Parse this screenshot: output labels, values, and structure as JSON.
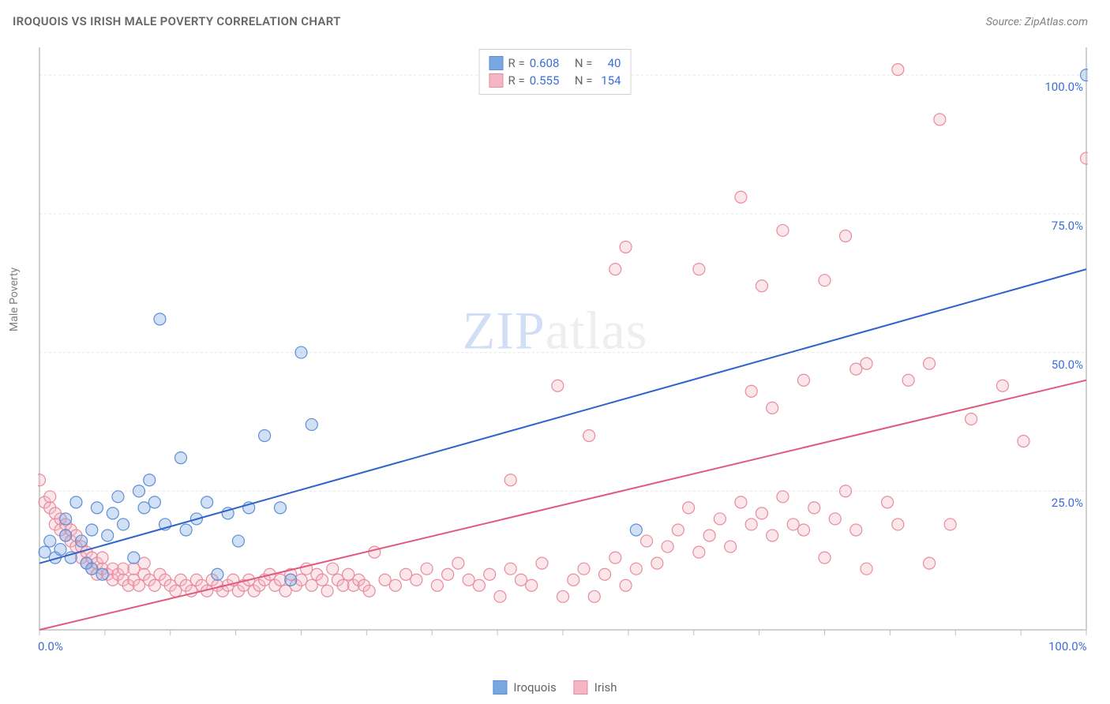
{
  "title": "IROQUOIS VS IRISH MALE POVERTY CORRELATION CHART",
  "source_prefix": "Source: ",
  "source_link": "ZipAtlas.com",
  "y_axis_label": "Male Poverty",
  "watermark": {
    "part1": "ZIP",
    "part2": "atlas"
  },
  "chart": {
    "type": "scatter",
    "background_color": "#ffffff",
    "grid_color": "#e5e5e5",
    "grid_dash": "3,3",
    "axis_color": "#bfbfbf",
    "xlim": [
      0,
      100
    ],
    "ylim": [
      0,
      105
    ],
    "xtick_step": 6.25,
    "ytick_positions": [
      25,
      50,
      75,
      100
    ],
    "ytick_labels": [
      "25.0%",
      "50.0%",
      "75.0%",
      "100.0%"
    ],
    "x_min_label": "0.0%",
    "x_max_label": "100.0%",
    "marker_radius": 7.5,
    "marker_stroke_width": 1.2,
    "fill_opacity": 0.35,
    "trend_line_width": 2,
    "series": [
      {
        "name": "Iroquois",
        "color": "#7aa6e0",
        "stroke": "#5b8fd6",
        "line_color": "#2f63c9",
        "R": "0.608",
        "N": "40",
        "trend": {
          "x1": 0,
          "y1": 12,
          "x2": 100,
          "y2": 65
        },
        "points": [
          [
            0.5,
            14
          ],
          [
            1,
            16
          ],
          [
            1.5,
            13
          ],
          [
            2,
            14.5
          ],
          [
            2.5,
            17
          ],
          [
            2.5,
            20
          ],
          [
            3,
            13
          ],
          [
            3.5,
            23
          ],
          [
            4,
            16
          ],
          [
            4.5,
            12
          ],
          [
            5,
            11
          ],
          [
            5,
            18
          ],
          [
            5.5,
            22
          ],
          [
            6,
            10
          ],
          [
            6.5,
            17
          ],
          [
            7,
            21
          ],
          [
            7.5,
            24
          ],
          [
            8,
            19
          ],
          [
            9,
            13
          ],
          [
            9.5,
            25
          ],
          [
            10,
            22
          ],
          [
            10.5,
            27
          ],
          [
            11,
            23
          ],
          [
            11.5,
            56
          ],
          [
            12,
            19
          ],
          [
            13.5,
            31
          ],
          [
            14,
            18
          ],
          [
            15,
            20
          ],
          [
            16,
            23
          ],
          [
            17,
            10
          ],
          [
            18,
            21
          ],
          [
            19,
            16
          ],
          [
            20,
            22
          ],
          [
            21.5,
            35
          ],
          [
            23,
            22
          ],
          [
            24,
            9
          ],
          [
            25,
            50
          ],
          [
            26,
            37
          ],
          [
            57,
            18
          ],
          [
            100,
            100
          ]
        ]
      },
      {
        "name": "Irish",
        "color": "#f4b6c3",
        "stroke": "#e88aa0",
        "line_color": "#e05a7d",
        "R": "0.555",
        "N": "154",
        "trend": {
          "x1": 0,
          "y1": 0,
          "x2": 100,
          "y2": 45
        },
        "points": [
          [
            0,
            27
          ],
          [
            0.5,
            23
          ],
          [
            1,
            22
          ],
          [
            1,
            24
          ],
          [
            1.5,
            21
          ],
          [
            1.5,
            19
          ],
          [
            2,
            20
          ],
          [
            2,
            18
          ],
          [
            2.5,
            17
          ],
          [
            2.5,
            19
          ],
          [
            3,
            16
          ],
          [
            3,
            18
          ],
          [
            3.5,
            15
          ],
          [
            3.5,
            17
          ],
          [
            4,
            15
          ],
          [
            4,
            13
          ],
          [
            4.5,
            14
          ],
          [
            4.5,
            12
          ],
          [
            5,
            13
          ],
          [
            5,
            11
          ],
          [
            5.5,
            12
          ],
          [
            5.5,
            10
          ],
          [
            6,
            11
          ],
          [
            6,
            13
          ],
          [
            6.5,
            10
          ],
          [
            7,
            11
          ],
          [
            7,
            9
          ],
          [
            7.5,
            10
          ],
          [
            8,
            9
          ],
          [
            8,
            11
          ],
          [
            8.5,
            8
          ],
          [
            9,
            9
          ],
          [
            9,
            11
          ],
          [
            9.5,
            8
          ],
          [
            10,
            10
          ],
          [
            10,
            12
          ],
          [
            10.5,
            9
          ],
          [
            11,
            8
          ],
          [
            11.5,
            10
          ],
          [
            12,
            9
          ],
          [
            12.5,
            8
          ],
          [
            13,
            7
          ],
          [
            13.5,
            9
          ],
          [
            14,
            8
          ],
          [
            14.5,
            7
          ],
          [
            15,
            9
          ],
          [
            15.5,
            8
          ],
          [
            16,
            7
          ],
          [
            16.5,
            9
          ],
          [
            17,
            8
          ],
          [
            17.5,
            7
          ],
          [
            18,
            8
          ],
          [
            18.5,
            9
          ],
          [
            19,
            7
          ],
          [
            19.5,
            8
          ],
          [
            20,
            9
          ],
          [
            20.5,
            7
          ],
          [
            21,
            8
          ],
          [
            21.5,
            9
          ],
          [
            22,
            10
          ],
          [
            22.5,
            8
          ],
          [
            23,
            9
          ],
          [
            23.5,
            7
          ],
          [
            24,
            10
          ],
          [
            24.5,
            8
          ],
          [
            25,
            9
          ],
          [
            25.5,
            11
          ],
          [
            26,
            8
          ],
          [
            26.5,
            10
          ],
          [
            27,
            9
          ],
          [
            27.5,
            7
          ],
          [
            28,
            11
          ],
          [
            28.5,
            9
          ],
          [
            29,
            8
          ],
          [
            29.5,
            10
          ],
          [
            30,
            8
          ],
          [
            30.5,
            9
          ],
          [
            31,
            8
          ],
          [
            31.5,
            7
          ],
          [
            32,
            14
          ],
          [
            33,
            9
          ],
          [
            34,
            8
          ],
          [
            35,
            10
          ],
          [
            36,
            9
          ],
          [
            37,
            11
          ],
          [
            38,
            8
          ],
          [
            39,
            10
          ],
          [
            40,
            12
          ],
          [
            41,
            9
          ],
          [
            42,
            8
          ],
          [
            43,
            10
          ],
          [
            44,
            6
          ],
          [
            45,
            11
          ],
          [
            45,
            27
          ],
          [
            46,
            9
          ],
          [
            47,
            8
          ],
          [
            48,
            12
          ],
          [
            49.5,
            44
          ],
          [
            50,
            6
          ],
          [
            51,
            9
          ],
          [
            52,
            11
          ],
          [
            52.5,
            35
          ],
          [
            53,
            6
          ],
          [
            54,
            10
          ],
          [
            55,
            13
          ],
          [
            55,
            65
          ],
          [
            56,
            8
          ],
          [
            56,
            69
          ],
          [
            57,
            11
          ],
          [
            58,
            16
          ],
          [
            59,
            12
          ],
          [
            60,
            15
          ],
          [
            61,
            18
          ],
          [
            62,
            22
          ],
          [
            63,
            14
          ],
          [
            63,
            65
          ],
          [
            64,
            17
          ],
          [
            65,
            20
          ],
          [
            66,
            15
          ],
          [
            67,
            23
          ],
          [
            67,
            78
          ],
          [
            68,
            19
          ],
          [
            68,
            43
          ],
          [
            69,
            21
          ],
          [
            69,
            62
          ],
          [
            70,
            17
          ],
          [
            70,
            40
          ],
          [
            71,
            24
          ],
          [
            71,
            72
          ],
          [
            72,
            19
          ],
          [
            73,
            45
          ],
          [
            73,
            18
          ],
          [
            74,
            22
          ],
          [
            75,
            13
          ],
          [
            75,
            63
          ],
          [
            76,
            20
          ],
          [
            77,
            25
          ],
          [
            77,
            71
          ],
          [
            78,
            18
          ],
          [
            78,
            47
          ],
          [
            79,
            48
          ],
          [
            79,
            11
          ],
          [
            81,
            23
          ],
          [
            82,
            19
          ],
          [
            82,
            101
          ],
          [
            83,
            45
          ],
          [
            85,
            12
          ],
          [
            85,
            48
          ],
          [
            86,
            92
          ],
          [
            87,
            19
          ],
          [
            89,
            38
          ],
          [
            92,
            44
          ],
          [
            94,
            34
          ],
          [
            100,
            85
          ]
        ]
      }
    ]
  },
  "legend_top": {
    "r_label": "R =",
    "n_label": "N ="
  },
  "legend_bottom": [
    {
      "label": "Iroquois"
    },
    {
      "label": "Irish"
    }
  ]
}
